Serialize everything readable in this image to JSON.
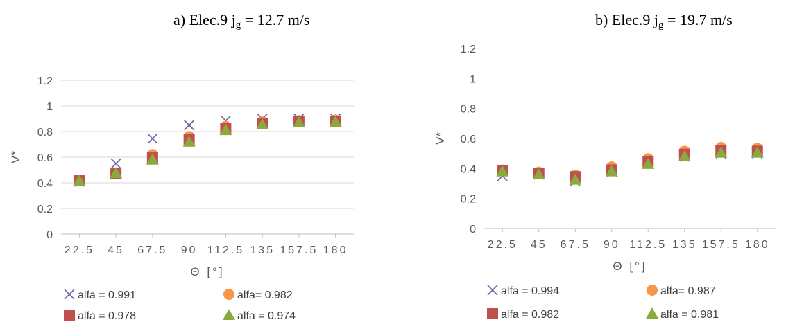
{
  "chart_data": [
    {
      "type": "scatter",
      "title_prefix": "a)   Elec.9 j",
      "title_sub": "g",
      "title_suffix": " = 12.7 m/s",
      "xlabel": "Θ [°]",
      "ylabel": "V*",
      "categories": [
        "22.5",
        "45",
        "67.5",
        "90",
        "112.5",
        "135",
        "157.5",
        "180"
      ],
      "y_ticks": [
        "0",
        "0.2",
        "0.4",
        "0.6",
        "0.8",
        "1",
        "1.2"
      ],
      "ylim": [
        0,
        1.2
      ],
      "grid": "horizontal",
      "legend_position": "bottom",
      "series": [
        {
          "name": "alfa = 0.991",
          "marker": "x",
          "color": "#7060A8",
          "values": [
            0.41,
            0.55,
            0.745,
            0.85,
            0.885,
            0.9,
            0.9,
            0.9
          ]
        },
        {
          "name": "alfa= 0.982",
          "marker": "circle",
          "color": "#F79646",
          "values": [
            0.42,
            0.475,
            0.62,
            0.76,
            0.84,
            0.875,
            0.885,
            0.89
          ]
        },
        {
          "name": "alfa = 0.978",
          "marker": "square",
          "color": "#C0504D",
          "values": [
            0.42,
            0.47,
            0.6,
            0.74,
            0.825,
            0.865,
            0.88,
            0.88
          ]
        },
        {
          "name": "alfa = 0.974",
          "marker": "triangle",
          "color": "#8BAA3E",
          "values": [
            0.415,
            0.475,
            0.58,
            0.72,
            0.81,
            0.855,
            0.87,
            0.875
          ]
        }
      ]
    },
    {
      "type": "scatter",
      "title_prefix": "b)   Elec.9 j",
      "title_sub": "g",
      "title_suffix": " = 19.7  m/s",
      "xlabel": "Θ [°]",
      "ylabel": "V*",
      "categories": [
        "22.5",
        "45",
        "67.5",
        "90",
        "112.5",
        "135",
        "157.5",
        "180"
      ],
      "y_ticks": [
        "0",
        "0.2",
        "0.4",
        "0.6",
        "0.8",
        "1",
        "1.2"
      ],
      "ylim": [
        0,
        1.2
      ],
      "grid": "none",
      "legend_position": "bottom",
      "series": [
        {
          "name": "alfa = 0.994",
          "marker": "x",
          "color": "#7060A8",
          "values": [
            0.35,
            0.36,
            0.315,
            0.38,
            0.435,
            0.48,
            0.5,
            0.5
          ]
        },
        {
          "name": "alfa= 0.987",
          "marker": "circle",
          "color": "#F79646",
          "values": [
            0.39,
            0.375,
            0.355,
            0.41,
            0.465,
            0.515,
            0.54,
            0.535
          ]
        },
        {
          "name": "alfa = 0.982",
          "marker": "square",
          "color": "#C0504D",
          "values": [
            0.385,
            0.365,
            0.345,
            0.39,
            0.445,
            0.495,
            0.52,
            0.515
          ]
        },
        {
          "name": "alfa = 0.981",
          "marker": "triangle",
          "color": "#8BAA3E",
          "values": [
            0.38,
            0.36,
            0.325,
            0.38,
            0.43,
            0.48,
            0.505,
            0.505
          ]
        }
      ]
    }
  ]
}
